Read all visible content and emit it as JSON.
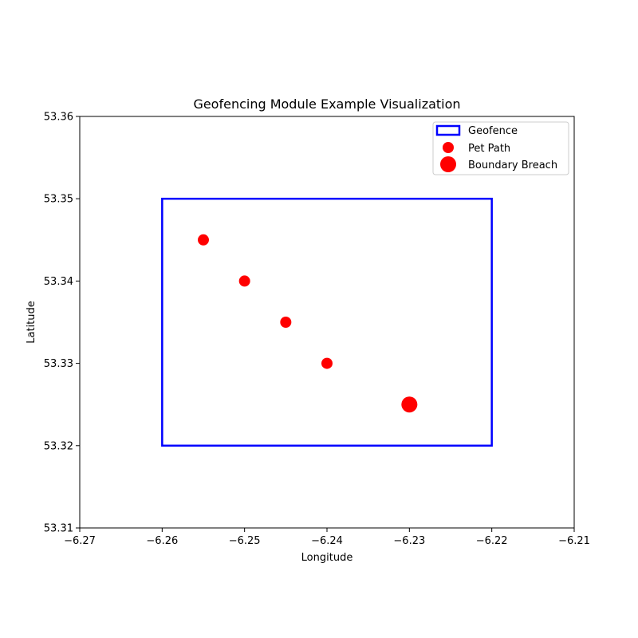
{
  "chart_data": {
    "type": "scatter",
    "title": "Geofencing Module Example Visualization",
    "xlabel": "Longitude",
    "ylabel": "Latitude",
    "xlim": [
      -6.27,
      -6.21
    ],
    "ylim": [
      53.31,
      53.36
    ],
    "xticks": [
      "−6.27",
      "−6.26",
      "−6.25",
      "−6.24",
      "−6.23",
      "−6.22",
      "−6.21"
    ],
    "xtick_values": [
      -6.27,
      -6.26,
      -6.25,
      -6.24,
      -6.23,
      -6.22,
      -6.21
    ],
    "yticks": [
      "53.31",
      "53.32",
      "53.33",
      "53.34",
      "53.35",
      "53.36"
    ],
    "ytick_values": [
      53.31,
      53.32,
      53.33,
      53.34,
      53.35,
      53.36
    ],
    "grid": false,
    "legend_position": "top-right",
    "geofence": {
      "name": "Geofence",
      "color": "#0000ff",
      "lon_min": -6.26,
      "lon_max": -6.22,
      "lat_min": 53.32,
      "lat_max": 53.35
    },
    "series": [
      {
        "name": "Pet Path",
        "color": "#ff0000",
        "marker": "small",
        "points": [
          {
            "x": -6.255,
            "y": 53.345
          },
          {
            "x": -6.25,
            "y": 53.34
          },
          {
            "x": -6.245,
            "y": 53.335
          },
          {
            "x": -6.24,
            "y": 53.33
          }
        ]
      },
      {
        "name": "Boundary Breach",
        "color": "#ff0000",
        "marker": "large",
        "points": [
          {
            "x": -6.23,
            "y": 53.325
          }
        ]
      }
    ]
  }
}
